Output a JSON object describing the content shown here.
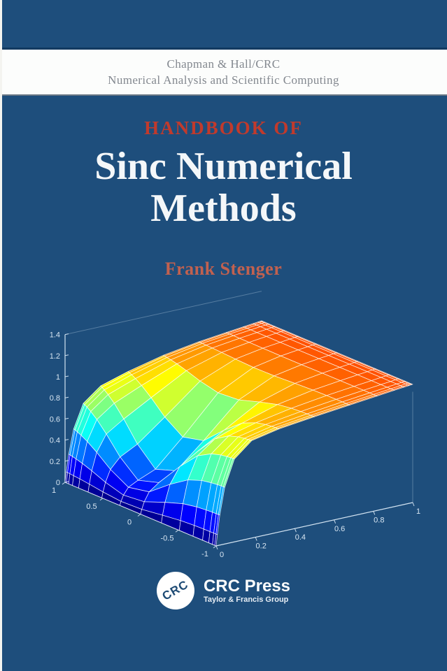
{
  "cover": {
    "series_line1": "Chapman & Hall/CRC",
    "series_line2": "Numerical Analysis and Scientific Computing",
    "pretitle": "HANDBOOK OF",
    "title_line1": "Sinc Numerical",
    "title_line2": "Methods",
    "author": "Frank Stenger",
    "publisher": {
      "logo_text": "CRC",
      "name": "CRC Press",
      "tagline": "Taylor & Francis Group"
    }
  },
  "colors": {
    "cover_blue": "#1e4e7c",
    "band_white": "#fcfdfc",
    "series_text": "#83888f",
    "pretitle_red": "#c13a2c",
    "title_white": "#f4f7f9",
    "author_red": "#c2614f",
    "axis_text": "#d8e6f2",
    "mesh_line": "#ffffff"
  },
  "chart_data": {
    "type": "surface",
    "title": "",
    "description": "MATLAB-style 3D surf plot with jet colormap and white mesh: a Sinc-method PDE solution with a sharp boundary layer dropping to 0 along one edge (rainbow-striped cliff walls at the back-left and front), a deep blue valley in the foreground, rising to a red plateau toward the back and right.",
    "x_axis": {
      "tick_labels": [
        "1",
        "0.5",
        "0",
        "-0.5",
        "-1"
      ],
      "range": [
        -1,
        1
      ]
    },
    "y_axis": {
      "tick_labels": [
        "0",
        "0.2",
        "0.4",
        "0.6",
        "0.8",
        "1"
      ],
      "range": [
        0,
        1
      ]
    },
    "z_axis": {
      "tick_labels": [
        "0",
        "0.2",
        "0.4",
        "0.6",
        "0.8",
        "1",
        "1.2",
        "1.4"
      ],
      "range": [
        0,
        1.4
      ],
      "tick_step": 0.2
    },
    "colormap": "jet",
    "grid": true,
    "surface_model": {
      "nx": 16,
      "ny": 14,
      "base": 0.92,
      "slope": 0.2,
      "dip_amp": 0.72,
      "dip_x": 0.2,
      "dip_y": 0.12,
      "sig_x": 0.4,
      "sig_y": 0.22,
      "layer": 0.05,
      "x_cluster": 2.2,
      "y_cluster": 2.6,
      "z_color_max": 1.4
    }
  }
}
